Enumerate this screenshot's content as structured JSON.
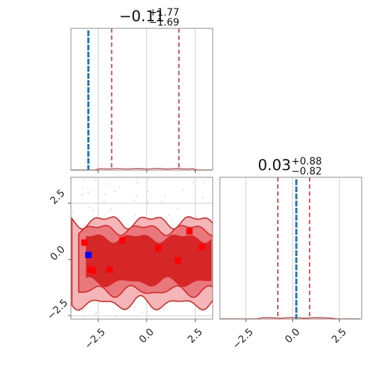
{
  "chart_data": {
    "type": "corner",
    "param1": {
      "title": {
        "median": "−0.11",
        "plus": "+1.77",
        "minus": "−1.69"
      },
      "median": -0.11,
      "lower": -1.8,
      "upper": 1.66,
      "truth": -3.0,
      "xlim": [
        -3.9,
        3.4
      ]
    },
    "param2": {
      "title": {
        "median": "0.03",
        "plus": "+0.88",
        "minus": "−0.82"
      },
      "median": 0.03,
      "lower": -0.79,
      "upper": 0.91,
      "truth": 0.2,
      "xlim": [
        -3.9,
        3.7
      ]
    },
    "scatter_2d": {
      "ylim": [
        -2.65,
        3.65
      ],
      "ticks": [
        "−2.5",
        "0.0",
        "2.5"
      ],
      "tick_values": [
        -2.5,
        0.0,
        2.5
      ],
      "red_points": [
        {
          "x": -3.2,
          "y": 0.75
        },
        {
          "x": -2.9,
          "y": -0.45
        },
        {
          "x": -2.75,
          "y": -0.5
        },
        {
          "x": -1.9,
          "y": -0.45
        },
        {
          "x": -1.25,
          "y": 0.85
        },
        {
          "x": 0.6,
          "y": 0.5
        },
        {
          "x": 1.6,
          "y": -0.05
        },
        {
          "x": 2.2,
          "y": 1.25
        },
        {
          "x": 2.85,
          "y": 0.55
        }
      ],
      "blue_point": {
        "x": -3.0,
        "y": 0.2
      }
    },
    "colors": {
      "quantile": "#d62728",
      "truth": "#1f77b4",
      "contour_fill_outer": "#f4b6b8",
      "contour_fill_mid": "#e9787c",
      "contour_fill_inner": "#d62728",
      "contour_line": "#d62728",
      "blue_marker": "#0000ff",
      "red_marker": "#ff0000"
    }
  }
}
